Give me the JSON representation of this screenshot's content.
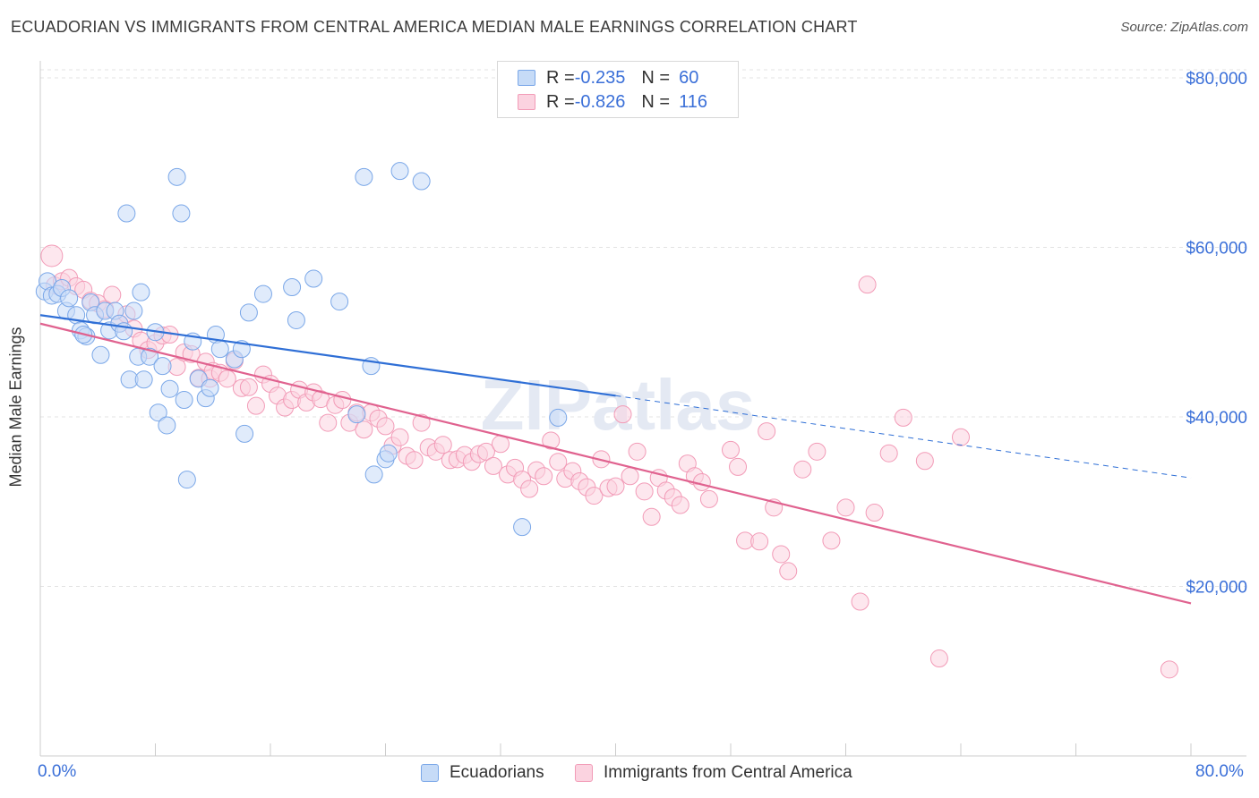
{
  "title": "ECUADORIAN VS IMMIGRANTS FROM CENTRAL AMERICA MEDIAN MALE EARNINGS CORRELATION CHART",
  "source": "Source: ZipAtlas.com",
  "watermark": "ZIPatlas",
  "legend": {
    "rows": [
      {
        "r_label": "R = ",
        "r_value": "-0.235",
        "n_label": "N = ",
        "n_value": "60",
        "color": "#7aa7e8"
      },
      {
        "r_label": "R = ",
        "r_value": "-0.826",
        "n_label": "N = ",
        "n_value": "116",
        "color": "#f29bb7"
      }
    ]
  },
  "bottom_legend": [
    "Ecuadorians",
    "Immigrants from Central America"
  ],
  "chart_data": {
    "type": "scatter",
    "title": "ECUADORIAN VS IMMIGRANTS FROM CENTRAL AMERICA MEDIAN MALE EARNINGS CORRELATION CHART",
    "xlabel": "",
    "ylabel": "Median Male Earnings",
    "xlim": [
      0,
      80
    ],
    "ylim": [
      0,
      82000
    ],
    "x_tick_labels": [
      "0.0%",
      "80.0%"
    ],
    "y_ticks": [
      20000,
      40000,
      60000,
      80000
    ],
    "y_tick_labels": [
      "$20,000",
      "$40,000",
      "$60,000",
      "$80,000"
    ],
    "grid": true,
    "legend_position": "top-center",
    "series": [
      {
        "name": "Ecuadorians",
        "color": "#7aa7e8",
        "trend": {
          "x": [
            0,
            40
          ],
          "y": [
            52000,
            42500
          ],
          "dashed_extension_to": [
            80,
            32800
          ]
        },
        "points": [
          [
            0.3,
            54800
          ],
          [
            0.5,
            56000
          ],
          [
            0.8,
            54300
          ],
          [
            1.2,
            54500
          ],
          [
            1.5,
            55200
          ],
          [
            1.8,
            52500
          ],
          [
            2.0,
            54000
          ],
          [
            2.5,
            52000
          ],
          [
            2.8,
            50200
          ],
          [
            3.2,
            49500
          ],
          [
            3.5,
            53500
          ],
          [
            3.8,
            52000
          ],
          [
            4.2,
            47300
          ],
          [
            4.5,
            52500
          ],
          [
            4.8,
            50200
          ],
          [
            5.2,
            52500
          ],
          [
            5.5,
            51000
          ],
          [
            5.8,
            50100
          ],
          [
            6.0,
            64000
          ],
          [
            6.2,
            44400
          ],
          [
            6.5,
            52500
          ],
          [
            6.8,
            47100
          ],
          [
            7.0,
            54700
          ],
          [
            7.2,
            44400
          ],
          [
            7.6,
            47100
          ],
          [
            8.0,
            50000
          ],
          [
            8.2,
            40500
          ],
          [
            8.5,
            46000
          ],
          [
            8.8,
            39000
          ],
          [
            9.0,
            43300
          ],
          [
            9.5,
            68300
          ],
          [
            9.8,
            64000
          ],
          [
            10.0,
            42000
          ],
          [
            10.2,
            32600
          ],
          [
            10.6,
            48900
          ],
          [
            11.0,
            44500
          ],
          [
            11.5,
            42200
          ],
          [
            11.8,
            43400
          ],
          [
            12.2,
            49700
          ],
          [
            12.5,
            48000
          ],
          [
            13.5,
            46800
          ],
          [
            14.0,
            48000
          ],
          [
            14.2,
            38000
          ],
          [
            14.5,
            52300
          ],
          [
            15.5,
            54500
          ],
          [
            17.5,
            55300
          ],
          [
            17.8,
            51400
          ],
          [
            19.0,
            56300
          ],
          [
            20.8,
            53600
          ],
          [
            22.0,
            40300
          ],
          [
            22.5,
            68300
          ],
          [
            23.0,
            46000
          ],
          [
            23.2,
            33200
          ],
          [
            24.0,
            35000
          ],
          [
            24.2,
            35700
          ],
          [
            25.0,
            69000
          ],
          [
            26.5,
            67800
          ],
          [
            36.0,
            39900
          ],
          [
            33.5,
            27000
          ],
          [
            3.0,
            49700
          ]
        ]
      },
      {
        "name": "Immigrants from Central America",
        "color": "#f29bb7",
        "trend": {
          "x": [
            0,
            80
          ],
          "y": [
            51000,
            18000
          ]
        },
        "points": [
          [
            0.8,
            59000
          ],
          [
            1.0,
            55500
          ],
          [
            1.5,
            56000
          ],
          [
            2.0,
            56400
          ],
          [
            2.5,
            55400
          ],
          [
            3.0,
            55000
          ],
          [
            3.5,
            53700
          ],
          [
            4.0,
            53400
          ],
          [
            4.5,
            52700
          ],
          [
            5.0,
            54400
          ],
          [
            5.5,
            51000
          ],
          [
            6.0,
            52100
          ],
          [
            6.5,
            50400
          ],
          [
            7.0,
            49000
          ],
          [
            7.5,
            47900
          ],
          [
            8.0,
            48700
          ],
          [
            8.5,
            49600
          ],
          [
            9.0,
            49700
          ],
          [
            9.5,
            45900
          ],
          [
            10.0,
            47600
          ],
          [
            10.5,
            47400
          ],
          [
            11.0,
            44600
          ],
          [
            11.5,
            46500
          ],
          [
            11.8,
            44500
          ],
          [
            12.0,
            45400
          ],
          [
            12.5,
            45200
          ],
          [
            13.0,
            44500
          ],
          [
            13.5,
            46600
          ],
          [
            14.0,
            43400
          ],
          [
            14.5,
            43500
          ],
          [
            15.0,
            41300
          ],
          [
            15.5,
            45000
          ],
          [
            16.0,
            43900
          ],
          [
            16.5,
            42500
          ],
          [
            17.0,
            41100
          ],
          [
            17.5,
            42000
          ],
          [
            18.0,
            43200
          ],
          [
            18.5,
            41700
          ],
          [
            19.0,
            42900
          ],
          [
            19.5,
            42100
          ],
          [
            20.0,
            39300
          ],
          [
            20.5,
            41400
          ],
          [
            21.0,
            42000
          ],
          [
            21.5,
            39300
          ],
          [
            22.0,
            40500
          ],
          [
            22.5,
            38500
          ],
          [
            23.0,
            40500
          ],
          [
            23.5,
            39800
          ],
          [
            24.0,
            38900
          ],
          [
            24.5,
            36600
          ],
          [
            25.0,
            37600
          ],
          [
            25.5,
            35400
          ],
          [
            26.0,
            34900
          ],
          [
            26.5,
            39300
          ],
          [
            27.0,
            36400
          ],
          [
            27.5,
            35900
          ],
          [
            28.0,
            36700
          ],
          [
            28.5,
            34900
          ],
          [
            29.0,
            35000
          ],
          [
            29.5,
            35500
          ],
          [
            30.0,
            34700
          ],
          [
            30.5,
            35600
          ],
          [
            31.0,
            35900
          ],
          [
            31.5,
            34200
          ],
          [
            32.0,
            36800
          ],
          [
            32.5,
            33200
          ],
          [
            33.0,
            34000
          ],
          [
            33.5,
            32600
          ],
          [
            34.0,
            31500
          ],
          [
            34.5,
            33700
          ],
          [
            35.0,
            33000
          ],
          [
            35.5,
            37200
          ],
          [
            36.0,
            34700
          ],
          [
            36.5,
            32700
          ],
          [
            37.0,
            33600
          ],
          [
            37.5,
            32400
          ],
          [
            38.0,
            31700
          ],
          [
            38.5,
            30700
          ],
          [
            39.0,
            35000
          ],
          [
            39.5,
            31600
          ],
          [
            40.0,
            31800
          ],
          [
            40.5,
            40300
          ],
          [
            41.0,
            33000
          ],
          [
            41.5,
            35900
          ],
          [
            42.0,
            31200
          ],
          [
            42.5,
            28200
          ],
          [
            43.0,
            32800
          ],
          [
            43.5,
            31300
          ],
          [
            44.0,
            30500
          ],
          [
            44.5,
            29600
          ],
          [
            45.0,
            34500
          ],
          [
            45.5,
            33000
          ],
          [
            46.0,
            32300
          ],
          [
            46.5,
            30300
          ],
          [
            48.0,
            36100
          ],
          [
            48.5,
            34100
          ],
          [
            49.0,
            25400
          ],
          [
            50.0,
            25300
          ],
          [
            50.5,
            38300
          ],
          [
            51.0,
            29300
          ],
          [
            51.5,
            23800
          ],
          [
            52.0,
            21800
          ],
          [
            53.0,
            33800
          ],
          [
            54.0,
            35900
          ],
          [
            55.0,
            25400
          ],
          [
            56.0,
            29300
          ],
          [
            57.0,
            18200
          ],
          [
            57.5,
            55600
          ],
          [
            58.0,
            28700
          ],
          [
            59.0,
            35700
          ],
          [
            60.0,
            39900
          ],
          [
            61.5,
            34800
          ],
          [
            62.5,
            11500
          ],
          [
            64.0,
            37600
          ],
          [
            78.5,
            10200
          ]
        ]
      }
    ]
  }
}
